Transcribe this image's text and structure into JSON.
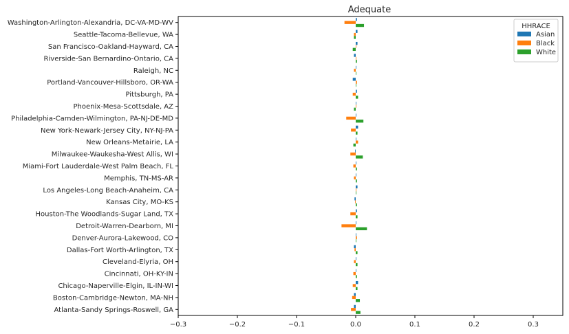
{
  "chart_data": {
    "type": "bar",
    "orientation": "horizontal",
    "title": "Adequate",
    "xlabel": "",
    "ylabel": "",
    "xlim": [
      -0.3,
      0.35
    ],
    "xticks": [
      -0.3,
      -0.2,
      -0.1,
      0.0,
      0.1,
      0.2,
      0.3
    ],
    "xtick_labels": [
      "−0.3",
      "−0.2",
      "−0.1",
      "0.0",
      "0.1",
      "0.2",
      "0.3"
    ],
    "grid": false,
    "legend": {
      "title": "HHRACE",
      "position": "top-right"
    },
    "categories": [
      "Atlanta-Sandy Springs-Roswell, GA",
      "Boston-Cambridge-Newton, MA-NH",
      "Chicago-Naperville-Elgin, IL-IN-WI",
      "Cincinnati, OH-KY-IN",
      "Cleveland-Elyria, OH",
      "Dallas-Fort Worth-Arlington, TX",
      "Denver-Aurora-Lakewood, CO",
      "Detroit-Warren-Dearborn, MI",
      "Houston-The Woodlands-Sugar Land, TX",
      "Kansas City, MO-KS",
      "Los Angeles-Long Beach-Anaheim, CA",
      "Memphis, TN-MS-AR",
      "Miami-Fort Lauderdale-West Palm Beach, FL",
      "Milwaukee-Waukesha-West Allis, WI",
      "New Orleans-Metairie, LA",
      "New York-Newark-Jersey City, NY-NJ-PA",
      "Philadelphia-Camden-Wilmington, PA-NJ-DE-MD",
      "Phoenix-Mesa-Scottsdale, AZ",
      "Pittsburgh, PA",
      "Portland-Vancouver-Hillsboro, OR-WA",
      "Raleigh, NC",
      "Riverside-San Bernardino-Ontario, CA",
      "San Francisco-Oakland-Hayward, CA",
      "Seattle-Tacoma-Bellevue, WA",
      "Washington-Arlington-Alexandria, DC-VA-MD-WV"
    ],
    "series": [
      {
        "name": "Asian",
        "color": "#1f77b4",
        "values": [
          -0.003,
          -0.003,
          0.004,
          0.001,
          0.001,
          -0.003,
          0.001,
          0.001,
          0.002,
          -0.002,
          0.003,
          0.001,
          0.001,
          -0.001,
          0.001,
          0.004,
          0.001,
          0.001,
          0.002,
          -0.005,
          0.001,
          -0.003,
          0.003,
          0.003,
          0.002
        ]
      },
      {
        "name": "Black",
        "color": "#ff7f0e",
        "values": [
          -0.008,
          -0.006,
          -0.005,
          -0.004,
          -0.003,
          -0.002,
          0.002,
          -0.024,
          -0.009,
          -0.001,
          0.001,
          -0.003,
          -0.004,
          -0.009,
          0.004,
          -0.008,
          -0.016,
          0.001,
          -0.005,
          0.002,
          -0.003,
          0.001,
          0.001,
          -0.003,
          -0.019
        ]
      },
      {
        "name": "White",
        "color": "#2ca02c",
        "values": [
          0.008,
          0.007,
          0.003,
          0.002,
          0.003,
          0.003,
          0.001,
          0.019,
          0.003,
          0.002,
          0.001,
          0.002,
          0.002,
          0.012,
          -0.004,
          0.003,
          0.013,
          -0.003,
          0.004,
          0.001,
          0.001,
          0.002,
          -0.005,
          -0.003,
          0.014
        ]
      }
    ]
  }
}
